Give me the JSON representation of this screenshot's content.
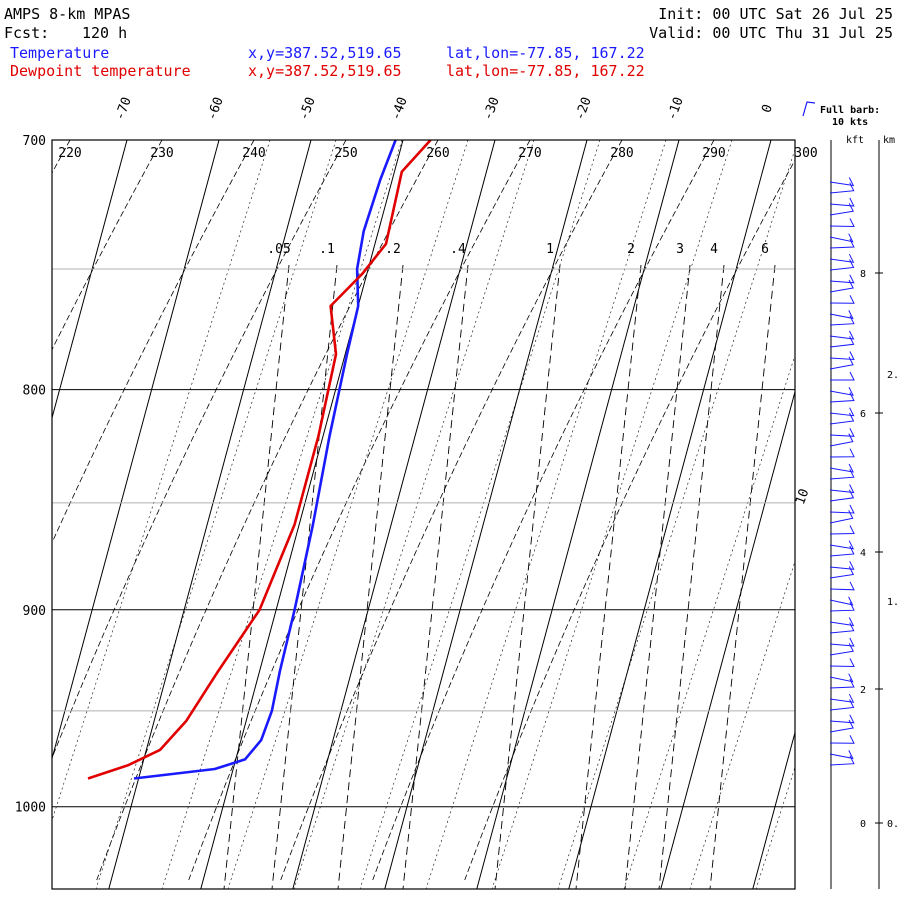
{
  "header": {
    "model": "AMPS 8-km MPAS",
    "fcst_label": "Fcst:",
    "fcst_value": "120 h",
    "init": "Init: 00 UTC Sat 26 Jul 25",
    "valid": "Valid: 00 UTC Thu 31 Jul 25"
  },
  "legend": [
    {
      "name": "Temperature",
      "color": "#1a1aff",
      "xy": "x,y=387.52,519.65",
      "latlon": "lat,lon=-77.85, 167.22"
    },
    {
      "name": "Dewpoint temperature",
      "color": "#e00000",
      "xy": "x,y=387.52,519.65",
      "latlon": "lat,lon=-77.85, 167.22"
    }
  ],
  "barb_key": {
    "line1": "Full barb:",
    "line2": "10 kts"
  },
  "height_axis": {
    "kft_label": "kft",
    "km_label": "km"
  },
  "chart_data": {
    "type": "line",
    "diagram": "skew-T log-P",
    "y_axis": {
      "unit": "hPa",
      "range": [
        1045,
        700
      ],
      "scale": "log",
      "ticks": [
        700,
        800,
        900,
        1000
      ]
    },
    "x_axis": {
      "unit": "°C",
      "top_ticks": [
        -70,
        -60,
        -50,
        -40,
        -30,
        -20,
        -10,
        0
      ]
    },
    "isotherm_spacing_c": 10,
    "potential_temperature_labels_k": [
      220,
      230,
      240,
      250,
      260,
      270,
      280,
      290,
      300
    ],
    "mixing_ratio_labels_gkg": [
      ".05",
      ".1",
      ".2",
      ".4",
      "1",
      "2",
      "3",
      "4",
      "6"
    ],
    "mid_label": "10",
    "series": [
      {
        "name": "Temperature",
        "color": "#1a1aff",
        "points": [
          [
            985,
            -50.5
          ],
          [
            980,
            -42.0
          ],
          [
            975,
            -39.0
          ],
          [
            965,
            -37.8
          ],
          [
            950,
            -37.5
          ],
          [
            930,
            -37.8
          ],
          [
            900,
            -38.0
          ],
          [
            860,
            -38.5
          ],
          [
            820,
            -39.3
          ],
          [
            785,
            -39.8
          ],
          [
            765,
            -40.0
          ],
          [
            750,
            -41.2
          ],
          [
            735,
            -41.6
          ],
          [
            715,
            -41.3
          ],
          [
            700,
            -40.8
          ]
        ]
      },
      {
        "name": "Dewpoint temperature",
        "color": "#e00000",
        "points": [
          [
            985,
            -55.5
          ],
          [
            978,
            -51.5
          ],
          [
            970,
            -48.5
          ],
          [
            955,
            -46.5
          ],
          [
            930,
            -44.5
          ],
          [
            900,
            -41.8
          ],
          [
            860,
            -40.5
          ],
          [
            820,
            -40.5
          ],
          [
            785,
            -41.0
          ],
          [
            765,
            -43.0
          ],
          [
            752,
            -40.5
          ],
          [
            740,
            -38.8
          ],
          [
            712,
            -39.2
          ],
          [
            700,
            -37.0
          ]
        ]
      }
    ],
    "height_ticks_kft": [
      0,
      2,
      4,
      6,
      8
    ],
    "height_ticks_km": [
      "0.",
      "1.",
      "2."
    ]
  }
}
